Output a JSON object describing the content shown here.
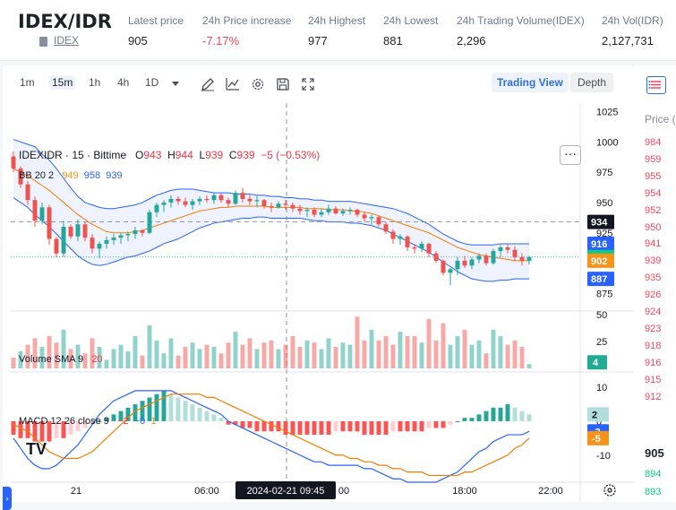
{
  "header": {
    "pair": "IDEX/IDR",
    "pair_sub": "IDEX",
    "stats": [
      {
        "label": "Latest price",
        "value": "905",
        "tone": "normal"
      },
      {
        "label": "24h Price increase",
        "value": "-7.17%",
        "tone": "red"
      },
      {
        "label": "24h Highest",
        "value": "977",
        "tone": "normal"
      },
      {
        "label": "24h Lowest",
        "value": "881",
        "tone": "normal"
      },
      {
        "label": "24h Trading Volume(IDEX)",
        "value": "2,296",
        "tone": "normal"
      },
      {
        "label": "24h Vol(IDR)",
        "value": "2,127,731",
        "tone": "normal"
      }
    ]
  },
  "toolbar": {
    "intervals": [
      "1m",
      "15m",
      "1h",
      "4h",
      "1D"
    ],
    "active_interval": "15m",
    "icons": [
      "draw-icon",
      "indicator-icon",
      "settings-icon",
      "save-icon",
      "fullscreen-icon"
    ],
    "tab_trading_view": "Trading View",
    "tab_depth": "Depth"
  },
  "legend": {
    "symbol": "IDEXIDR · 15 · Bittime",
    "o_label": "O",
    "o": "943",
    "h_label": "H",
    "h": "944",
    "l_label": "L",
    "l": "939",
    "c_label": "C",
    "c": "939",
    "change": "−5 (−0.53%)",
    "bb_label": "BB 20 2",
    "bb_basis": "949",
    "bb_upper": "958",
    "bb_lower": "939",
    "vol_label": "Volume SMA 9",
    "vol_sma": "20",
    "macd_label": "MACD 12 26 close 9",
    "macd_hist": "−2",
    "macd_line": "−0",
    "macd_signal": "1",
    "menu": "···"
  },
  "price_axis": {
    "ticks": [
      "1025",
      "1000",
      "975",
      "950",
      "925",
      "900",
      "875"
    ],
    "tags": [
      {
        "value": "934",
        "color": "#131722"
      },
      {
        "value": "916",
        "color": "#2962ff"
      },
      {
        "value": "905",
        "color": "#0ecb81"
      },
      {
        "value": "902",
        "color": "#f7931a"
      },
      {
        "value": "887",
        "color": "#2962ff"
      }
    ],
    "vol_ticks": [
      "50",
      "25"
    ],
    "vol_tag": {
      "value": "4",
      "color": "#22ab94"
    },
    "macd_ticks": [
      "10",
      "0",
      "-10"
    ],
    "macd_tags": [
      {
        "value": "2",
        "color": "#b2dfdb",
        "text": "#131722"
      },
      {
        "value": "-3",
        "color": "#2962ff",
        "text": "#ffffff"
      },
      {
        "value": "-5",
        "color": "#f7931a",
        "text": "#ffffff"
      }
    ]
  },
  "time_axis": {
    "labels": [
      "21",
      "06:00",
      "18:00",
      "22:00"
    ],
    "crosshair_label": "2024-02-21    09:45",
    "crosshair_hidden_label": "00"
  },
  "orderbook": {
    "header": "Price (",
    "rows": [
      "984",
      "959",
      "955",
      "954",
      "952",
      "950",
      "941",
      "939",
      "935",
      "926",
      "924",
      "923",
      "918",
      "916",
      "915",
      "912"
    ],
    "mid": "905",
    "bids": [
      "894",
      "893"
    ]
  },
  "colors": {
    "up": "#26a69a",
    "down": "#ef5350",
    "bb_band": "#2962ff",
    "bb_basis": "#f57c00",
    "macd": "#2962ff",
    "signal": "#f57c00"
  },
  "chart_data": {
    "type": "candlestick",
    "symbol": "IDEXIDR",
    "interval": "15",
    "price_range": [
      862,
      1032
    ],
    "candles": [
      [
        988,
        992,
        975,
        978
      ],
      [
        978,
        980,
        962,
        965
      ],
      [
        965,
        968,
        948,
        952
      ],
      [
        952,
        955,
        930,
        935
      ],
      [
        935,
        950,
        932,
        946
      ],
      [
        946,
        948,
        915,
        920
      ],
      [
        920,
        922,
        905,
        908
      ],
      [
        908,
        935,
        905,
        930
      ],
      [
        930,
        932,
        920,
        922
      ],
      [
        922,
        936,
        918,
        932
      ],
      [
        932,
        934,
        918,
        921
      ],
      [
        921,
        924,
        908,
        912
      ],
      [
        912,
        918,
        904,
        916
      ],
      [
        916,
        922,
        912,
        919
      ],
      [
        919,
        924,
        915,
        921
      ],
      [
        921,
        925,
        916,
        923
      ],
      [
        923,
        926,
        918,
        924
      ],
      [
        924,
        930,
        920,
        927
      ],
      [
        927,
        928,
        922,
        925
      ],
      [
        925,
        944,
        924,
        942
      ],
      [
        942,
        950,
        938,
        948
      ],
      [
        948,
        952,
        942,
        950
      ],
      [
        950,
        956,
        946,
        953
      ],
      [
        953,
        955,
        948,
        951
      ],
      [
        951,
        954,
        946,
        948
      ],
      [
        948,
        953,
        944,
        951
      ],
      [
        951,
        955,
        948,
        953
      ],
      [
        953,
        956,
        950,
        952
      ],
      [
        952,
        958,
        949,
        956
      ],
      [
        956,
        958,
        950,
        952
      ],
      [
        952,
        954,
        946,
        949
      ],
      [
        949,
        960,
        948,
        958
      ],
      [
        958,
        962,
        950,
        953
      ],
      [
        953,
        956,
        948,
        951
      ],
      [
        951,
        955,
        946,
        952
      ],
      [
        952,
        953,
        945,
        947
      ],
      [
        947,
        950,
        942,
        946
      ],
      [
        946,
        951,
        945,
        949
      ],
      [
        949,
        952,
        944,
        948
      ],
      [
        948,
        950,
        942,
        945
      ],
      [
        945,
        948,
        940,
        943
      ],
      [
        943,
        946,
        938,
        944
      ],
      [
        944,
        946,
        938,
        940
      ],
      [
        940,
        945,
        938,
        942
      ],
      [
        942,
        948,
        940,
        945
      ],
      [
        945,
        947,
        940,
        941
      ],
      [
        941,
        945,
        939,
        943
      ],
      [
        943,
        946,
        940,
        944
      ],
      [
        944,
        945,
        938,
        940
      ],
      [
        940,
        942,
        934,
        937
      ],
      [
        937,
        940,
        932,
        938
      ],
      [
        938,
        939,
        930,
        932
      ],
      [
        932,
        934,
        924,
        926
      ],
      [
        926,
        928,
        916,
        920
      ],
      [
        920,
        924,
        915,
        922
      ],
      [
        922,
        923,
        910,
        913
      ],
      [
        913,
        916,
        908,
        912
      ],
      [
        912,
        918,
        909,
        916
      ],
      [
        916,
        917,
        905,
        908
      ],
      [
        908,
        910,
        900,
        902
      ],
      [
        902,
        903,
        890,
        892
      ],
      [
        892,
        896,
        882,
        895
      ],
      [
        895,
        905,
        890,
        902
      ],
      [
        902,
        906,
        896,
        898
      ],
      [
        898,
        905,
        895,
        903
      ],
      [
        903,
        908,
        900,
        906
      ],
      [
        906,
        908,
        898,
        900
      ],
      [
        900,
        912,
        899,
        910
      ],
      [
        910,
        915,
        905,
        913
      ],
      [
        913,
        916,
        908,
        911
      ],
      [
        911,
        914,
        902,
        905
      ],
      [
        905,
        908,
        898,
        902
      ],
      [
        902,
        906,
        899,
        905
      ]
    ],
    "volume": [
      [
        10,
        "d"
      ],
      [
        16,
        "u"
      ],
      [
        22,
        "d"
      ],
      [
        28,
        "d"
      ],
      [
        20,
        "u"
      ],
      [
        30,
        "d"
      ],
      [
        24,
        "d"
      ],
      [
        36,
        "u"
      ],
      [
        18,
        "d"
      ],
      [
        22,
        "u"
      ],
      [
        14,
        "d"
      ],
      [
        28,
        "d"
      ],
      [
        20,
        "u"
      ],
      [
        8,
        "u"
      ],
      [
        18,
        "u"
      ],
      [
        22,
        "u"
      ],
      [
        16,
        "u"
      ],
      [
        30,
        "u"
      ],
      [
        12,
        "d"
      ],
      [
        40,
        "u"
      ],
      [
        26,
        "u"
      ],
      [
        14,
        "u"
      ],
      [
        28,
        "u"
      ],
      [
        12,
        "d"
      ],
      [
        20,
        "d"
      ],
      [
        24,
        "u"
      ],
      [
        18,
        "u"
      ],
      [
        22,
        "d"
      ],
      [
        20,
        "u"
      ],
      [
        14,
        "d"
      ],
      [
        24,
        "d"
      ],
      [
        34,
        "u"
      ],
      [
        22,
        "d"
      ],
      [
        28,
        "d"
      ],
      [
        18,
        "u"
      ],
      [
        24,
        "d"
      ],
      [
        26,
        "d"
      ],
      [
        18,
        "u"
      ],
      [
        22,
        "d"
      ],
      [
        30,
        "d"
      ],
      [
        20,
        "d"
      ],
      [
        26,
        "u"
      ],
      [
        24,
        "d"
      ],
      [
        18,
        "u"
      ],
      [
        28,
        "u"
      ],
      [
        20,
        "d"
      ],
      [
        24,
        "u"
      ],
      [
        22,
        "u"
      ],
      [
        48,
        "d"
      ],
      [
        26,
        "d"
      ],
      [
        36,
        "u"
      ],
      [
        26,
        "d"
      ],
      [
        30,
        "d"
      ],
      [
        22,
        "d"
      ],
      [
        34,
        "u"
      ],
      [
        30,
        "d"
      ],
      [
        30,
        "d"
      ],
      [
        24,
        "u"
      ],
      [
        46,
        "d"
      ],
      [
        26,
        "d"
      ],
      [
        42,
        "d"
      ],
      [
        22,
        "u"
      ],
      [
        30,
        "u"
      ],
      [
        36,
        "d"
      ],
      [
        22,
        "u"
      ],
      [
        26,
        "u"
      ],
      [
        14,
        "d"
      ],
      [
        36,
        "u"
      ],
      [
        30,
        "u"
      ],
      [
        22,
        "d"
      ],
      [
        26,
        "d"
      ],
      [
        20,
        "d"
      ],
      [
        4,
        "u"
      ]
    ],
    "bb": {
      "upper": [
        1002,
        1000,
        998,
        996,
        990,
        985,
        978,
        970,
        962,
        955,
        950,
        948,
        946,
        945,
        945,
        946,
        947,
        948,
        950,
        953,
        956,
        958,
        960,
        961,
        961,
        961,
        960,
        959,
        958,
        958,
        958,
        957,
        957,
        957,
        956,
        956,
        955,
        955,
        954,
        954,
        953,
        953,
        952,
        952,
        951,
        951,
        951,
        951,
        950,
        949,
        948,
        947,
        946,
        945,
        943,
        941,
        938,
        935,
        932,
        928,
        924,
        921,
        918,
        916,
        915,
        915,
        915,
        915,
        916,
        916,
        916,
        916,
        916
      ],
      "basis": [
        978,
        975,
        972,
        968,
        964,
        960,
        955,
        950,
        945,
        940,
        936,
        932,
        929,
        926,
        925,
        925,
        925,
        926,
        927,
        929,
        931,
        933,
        935,
        937,
        939,
        941,
        943,
        944,
        945,
        946,
        946,
        947,
        947,
        947,
        947,
        947,
        946,
        946,
        946,
        946,
        946,
        945,
        945,
        945,
        944,
        944,
        944,
        943,
        943,
        942,
        941,
        939,
        937,
        935,
        933,
        931,
        929,
        927,
        925,
        922,
        919,
        916,
        913,
        911,
        909,
        907,
        906,
        905,
        904,
        903,
        902,
        902,
        902
      ],
      "lower": [
        954,
        950,
        946,
        940,
        935,
        930,
        924,
        918,
        912,
        906,
        902,
        899,
        898,
        899,
        901,
        903,
        905,
        906,
        908,
        910,
        913,
        916,
        918,
        920,
        923,
        926,
        929,
        931,
        933,
        934,
        935,
        936,
        937,
        937,
        938,
        938,
        937,
        937,
        937,
        937,
        937,
        936,
        935,
        935,
        934,
        934,
        934,
        933,
        933,
        932,
        931,
        929,
        927,
        924,
        921,
        918,
        915,
        912,
        909,
        905,
        901,
        897,
        893,
        890,
        887,
        886,
        885,
        885,
        886,
        886,
        887,
        887,
        887
      ]
    },
    "macd": {
      "hist": [
        -4,
        -5,
        -5,
        -6,
        -6,
        -6,
        -5,
        -5,
        -4,
        -3,
        -2,
        -1,
        0,
        1,
        2,
        3,
        4,
        5,
        6,
        7,
        8,
        9,
        8,
        7,
        6,
        5,
        4,
        3,
        2,
        1,
        -1,
        -1,
        -2,
        -2,
        -3,
        -3,
        -3,
        -3,
        -4,
        -4,
        -4,
        -4,
        -4,
        -4,
        -4,
        -3,
        -3,
        -3,
        -3,
        -4,
        -4,
        -4,
        -4,
        -3,
        -3,
        -3,
        -3,
        -3,
        -2,
        -2,
        -2,
        -1,
        0,
        1,
        1,
        2,
        3,
        4,
        4,
        5,
        4,
        3,
        2
      ],
      "macd": [
        -5,
        -8,
        -11,
        -13,
        -14,
        -14,
        -13,
        -11,
        -9,
        -7,
        -4,
        -1,
        2,
        4,
        6,
        7,
        8,
        9,
        9,
        9,
        9,
        9,
        9,
        8,
        7,
        6,
        5,
        4,
        3,
        2,
        0,
        -1,
        -2,
        -3,
        -4,
        -5,
        -6,
        -7,
        -8,
        -9,
        -10,
        -11,
        -12,
        -12,
        -13,
        -13,
        -13,
        -13,
        -13,
        -14,
        -14,
        -15,
        -16,
        -17,
        -17,
        -18,
        -18,
        -18,
        -18,
        -18,
        -17,
        -16,
        -15,
        -13,
        -11,
        -9,
        -8,
        -6,
        -5,
        -4,
        -4,
        -4,
        -3
      ],
      "signal": [
        -1,
        -2,
        -3,
        -5,
        -7,
        -9,
        -10,
        -11,
        -11,
        -11,
        -10,
        -9,
        -7,
        -5,
        -3,
        -1,
        1,
        3,
        4,
        5,
        6,
        7,
        8,
        8,
        8,
        8,
        8,
        7,
        7,
        6,
        5,
        4,
        3,
        2,
        1,
        0,
        -1,
        -2,
        -3,
        -4,
        -5,
        -6,
        -7,
        -8,
        -9,
        -10,
        -10,
        -11,
        -11,
        -12,
        -12,
        -13,
        -13,
        -14,
        -14,
        -15,
        -15,
        -15,
        -16,
        -16,
        -16,
        -16,
        -16,
        -15,
        -15,
        -14,
        -13,
        -12,
        -11,
        -10,
        -8,
        -7,
        -5
      ]
    },
    "vol_range": [
      0,
      50
    ],
    "macd_range": [
      -18,
      14
    ]
  }
}
